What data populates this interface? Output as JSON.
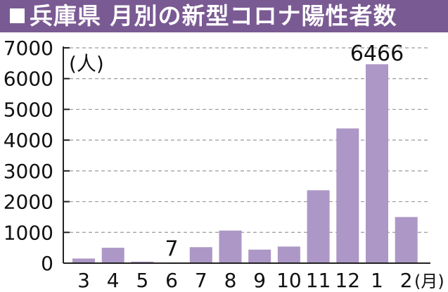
{
  "header": {
    "title": "兵庫県 月別の新型コロナ陽性者数",
    "bar_color": "#7a5a93"
  },
  "chart_data": {
    "type": "bar",
    "title": "兵庫県 月別の新型コロナ陽性者数",
    "ylabel": "(人)",
    "xunit": "(月)",
    "categories": [
      "3",
      "4",
      "5",
      "6",
      "7",
      "8",
      "9",
      "10",
      "11",
      "12",
      "1",
      "2"
    ],
    "values": [
      150,
      500,
      50,
      7,
      520,
      1060,
      440,
      540,
      2370,
      4380,
      6466,
      1500
    ],
    "ylim": [
      0,
      7000
    ],
    "yticks": [
      "0",
      "1000",
      "2000",
      "3000",
      "4000",
      "5000",
      "6000",
      "7000"
    ],
    "annotations": [
      {
        "category": "6",
        "text": "7"
      },
      {
        "category": "1",
        "text": "6466"
      }
    ],
    "grid": true,
    "bar_color": "#ac97c6"
  }
}
